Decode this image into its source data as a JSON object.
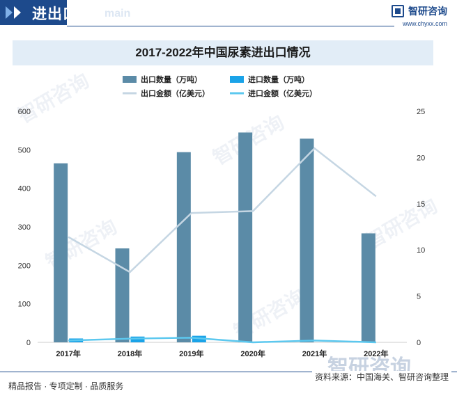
{
  "header": {
    "title": "进出口贸易",
    "watermark": "main"
  },
  "brand": {
    "name": "智研咨询",
    "url": "www.chyxx.com"
  },
  "watermark_text": "智研咨询",
  "colors": {
    "export_qty": "#5b8ba7",
    "import_qty": "#1aa3e8",
    "export_value": "#c5d6e3",
    "import_value": "#5cc8ef",
    "brand": "#1d4a8c"
  },
  "chart_data": {
    "type": "bar",
    "title": "2017-2022年中国尿素进出口情况",
    "categories": [
      "2017年",
      "2018年",
      "2019年",
      "2020年",
      "2021年",
      "2022年"
    ],
    "legend": [
      "出口数量（万吨）",
      "进口数量（万吨）",
      "出口金额（亿美元）",
      "进口金额（亿美元）"
    ],
    "y_left": {
      "ylim": [
        0,
        600
      ],
      "ticks": [
        "0",
        "100",
        "200",
        "300",
        "400",
        "500",
        "600"
      ]
    },
    "y_right": {
      "ylim": [
        0,
        25
      ],
      "ticks": [
        "0",
        "5",
        "10",
        "15",
        "20",
        "25"
      ]
    },
    "series": [
      {
        "name": "出口数量（万吨）",
        "type": "bar",
        "axis": "left",
        "values": [
          465,
          244,
          494,
          545,
          529,
          283
        ]
      },
      {
        "name": "进口数量（万吨）",
        "type": "bar",
        "axis": "left",
        "values": [
          10,
          15,
          17,
          0,
          0,
          0
        ]
      },
      {
        "name": "出口金额（亿美元）",
        "type": "line",
        "axis": "right",
        "values": [
          11.4,
          7.6,
          14.0,
          14.2,
          21.0,
          15.8
        ]
      },
      {
        "name": "进口金额（亿美元）",
        "type": "line",
        "axis": "right",
        "values": [
          0.2,
          0.4,
          0.5,
          0.0,
          0.2,
          0.0
        ]
      }
    ]
  },
  "footer": {
    "left": "精品报告 · 专项定制 · 品质服务",
    "source": "资料来源：中国海关、智研咨询整理"
  }
}
